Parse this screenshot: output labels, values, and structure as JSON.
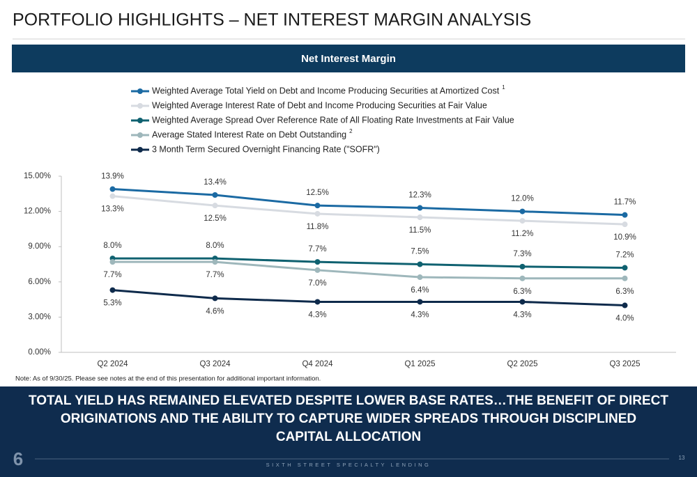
{
  "header": {
    "title": "PORTFOLIO HIGHLIGHTS – NET INTEREST MARGIN ANALYSIS",
    "banner": "Net Interest Margin"
  },
  "chart_data": {
    "type": "line",
    "categories": [
      "Q2 2024",
      "Q3 2024",
      "Q4 2024",
      "Q1 2025",
      "Q2 2025",
      "Q3 2025"
    ],
    "ylim": [
      0,
      15
    ],
    "yticks": [
      {
        "value": 0,
        "label": "0.00%"
      },
      {
        "value": 3,
        "label": "3.00%"
      },
      {
        "value": 6,
        "label": "6.00%"
      },
      {
        "value": 9,
        "label": "9.00%"
      },
      {
        "value": 12,
        "label": "12.00%"
      },
      {
        "value": 15,
        "label": "15.00%"
      }
    ],
    "grid": false,
    "series": [
      {
        "name": "Weighted Average Total Yield on Debt and Income Producing Securities at Amortized Cost",
        "footnote": "1",
        "color": "#1b6aa3",
        "values": [
          13.9,
          13.4,
          12.5,
          12.3,
          12.0,
          11.7
        ],
        "value_labels": [
          "13.9%",
          "13.4%",
          "12.5%",
          "12.3%",
          "12.0%",
          "11.7%"
        ]
      },
      {
        "name": "Weighted Average Interest Rate of Debt and Income Producing Securities at Fair Value",
        "color": "#d7dbe1",
        "values": [
          13.3,
          12.5,
          11.8,
          11.5,
          11.2,
          10.9
        ],
        "value_labels": [
          "13.3%",
          "12.5%",
          "11.8%",
          "11.5%",
          "11.2%",
          "10.9%"
        ]
      },
      {
        "name": "Weighted Average Spread Over Reference Rate of All Floating Rate Investments at Fair Value",
        "color": "#0f6170",
        "values": [
          8.0,
          8.0,
          7.7,
          7.5,
          7.3,
          7.2
        ],
        "value_labels": [
          "8.0%",
          "8.0%",
          "7.7%",
          "7.5%",
          "7.3%",
          "7.2%"
        ]
      },
      {
        "name": "Average Stated Interest Rate on Debt Outstanding",
        "footnote": "2",
        "color": "#9eb7bb",
        "values": [
          7.7,
          7.7,
          7.0,
          6.4,
          6.3,
          6.3
        ],
        "value_labels": [
          "7.7%",
          "7.7%",
          "7.0%",
          "6.4%",
          "6.3%",
          "6.3%"
        ]
      },
      {
        "name": "3 Month Term Secured Overnight Financing Rate (\"SOFR\")",
        "color": "#0e2a4b",
        "values": [
          5.3,
          4.6,
          4.3,
          4.3,
          4.3,
          4.0
        ],
        "value_labels": [
          "5.3%",
          "4.6%",
          "4.3%",
          "4.3%",
          "4.3%",
          "4.0%"
        ]
      }
    ]
  },
  "note": "Note: As of 9/30/25. Please see notes at the end of this presentation for additional important information.",
  "footer": {
    "headline_lines": [
      "TOTAL YIELD HAS REMAINED ELEVATED DESPITE LOWER BASE RATES…THE BENEFIT OF DIRECT",
      "ORIGINATIONS AND THE ABILITY TO CAPTURE WIDER SPREADS THROUGH DISCIPLINED",
      "CAPITAL ALLOCATION"
    ],
    "logo": "6",
    "company": "SIXTH STREET SPECIALTY LENDING",
    "page_number": "13"
  }
}
